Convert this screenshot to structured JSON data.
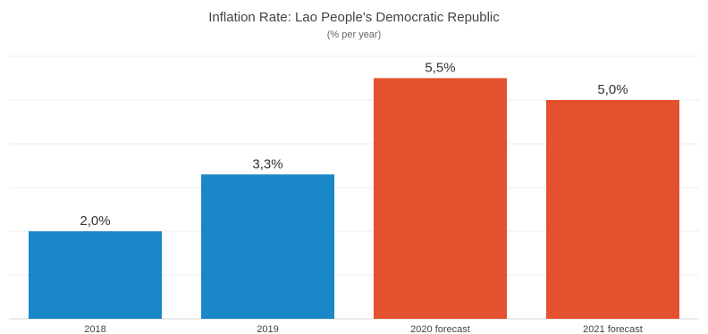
{
  "chart_data": {
    "type": "bar",
    "title": "Inflation Rate: Lao People's Democratic Republic",
    "subtitle": "(% per year)",
    "categories": [
      "2018",
      "2019",
      "2020 forecast",
      "2021 forecast"
    ],
    "values": [
      2.0,
      3.3,
      5.5,
      5.0
    ],
    "data_labels": [
      "2,0%",
      "3,3%",
      "5,5%",
      "5,0%"
    ],
    "bar_colors": [
      "#1a87c8",
      "#1a87c8",
      "#e4512e",
      "#e4512e"
    ],
    "ylim": [
      0,
      6
    ],
    "grid": true,
    "legend": "none"
  }
}
